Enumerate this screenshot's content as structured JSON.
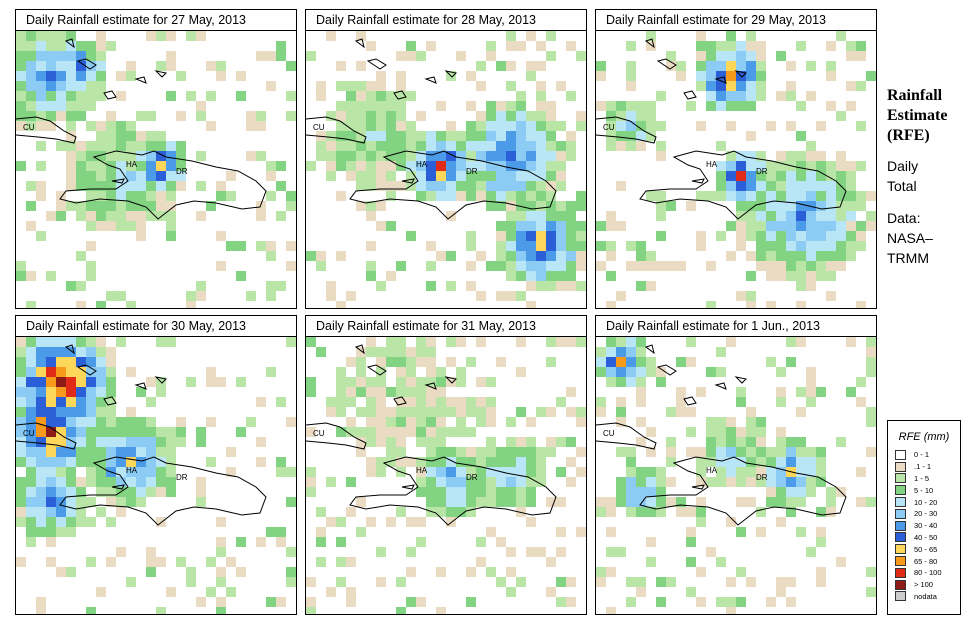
{
  "panels": [
    {
      "title": "Daily Rainfall estimate for  27 May, 2013"
    },
    {
      "title": "Daily Rainfall estimate for  28 May, 2013"
    },
    {
      "title": "Daily Rainfall estimate for  29 May, 2013"
    },
    {
      "title": "Daily Rainfall estimate for  30 May, 2013"
    },
    {
      "title": "Daily Rainfall estimate for  31 May, 2013"
    },
    {
      "title": "Daily Rainfall estimate for  1 Jun., 2013"
    }
  ],
  "map_labels": {
    "cuba": "CU",
    "haiti": "HA",
    "dominican_republic": "DR"
  },
  "sidebar": {
    "title_line1": "Rainfall",
    "title_line2": "Estimate",
    "title_line3": "(RFE)",
    "period_line1": "Daily",
    "period_line2": "Total",
    "source_line1": "Data:",
    "source_line2": "NASA–",
    "source_line3": "TRMM"
  },
  "legend": {
    "title": "RFE (mm)",
    "classes": [
      {
        "label": "0 - 1",
        "color": "#ffffff"
      },
      {
        "label": ".1 - 1",
        "color": "#e9dcc2"
      },
      {
        "label": "1 - 5",
        "color": "#b9e6a7"
      },
      {
        "label": "5 - 10",
        "color": "#82d482"
      },
      {
        "label": "10 - 20",
        "color": "#b8e6f7"
      },
      {
        "label": "20 - 30",
        "color": "#8ccbf3"
      },
      {
        "label": "30 - 40",
        "color": "#4c9be8"
      },
      {
        "label": "40 - 50",
        "color": "#2b5fd8"
      },
      {
        "label": "50 - 65",
        "color": "#fcd75a"
      },
      {
        "label": "65 - 80",
        "color": "#f79a1c"
      },
      {
        "label": "80 - 100",
        "color": "#e02b18"
      },
      {
        "label": "> 100",
        "color": "#8e1c16"
      },
      {
        "label": "nodata",
        "color": "#cccccc"
      }
    ]
  }
}
